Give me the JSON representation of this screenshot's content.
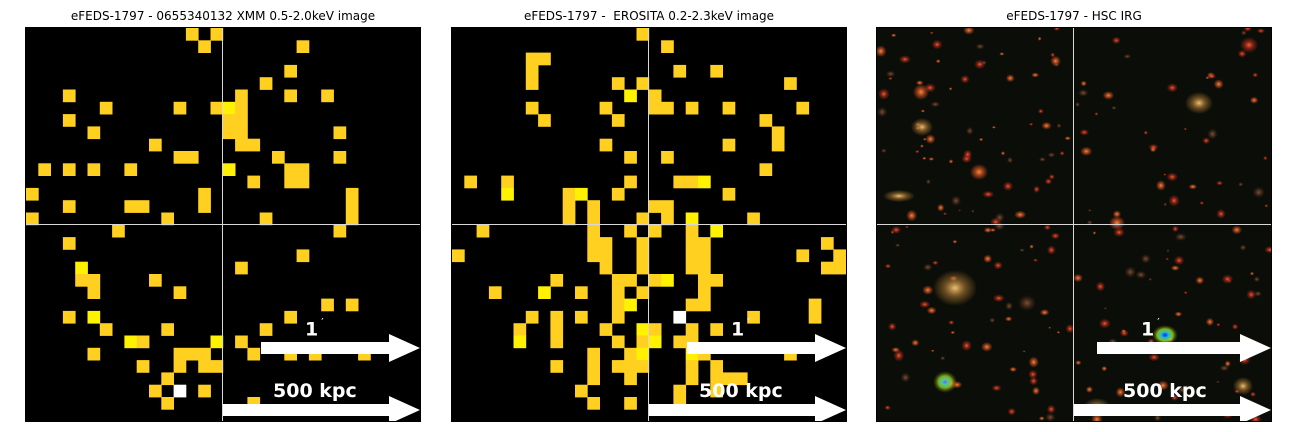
{
  "panels": [
    {
      "title": "eFEDS-1797 - 0655340132 XMM 0.5-2.0keV image",
      "angular_scale_label": "1",
      "angular_scale_unit": "′",
      "physical_scale_label": "500 kpc",
      "kind": "xray-pixel-map"
    },
    {
      "title": "eFEDS-1797 -  EROSITA 0.2-2.3keV image",
      "angular_scale_label": "1",
      "angular_scale_unit": "′",
      "physical_scale_label": "500 kpc",
      "kind": "xray-pixel-map"
    },
    {
      "title": "eFEDS-1797 - HSC IRG",
      "angular_scale_label": "1",
      "angular_scale_unit": "′",
      "physical_scale_label": "500 kpc",
      "kind": "optical-color-composite"
    }
  ],
  "colors": {
    "background": "#000000",
    "count_low": "#ffc140",
    "count_mid": "#ffd020",
    "count_high": "#fff200",
    "count_peak": "#ffffff",
    "crosshair": "#d8d8d8",
    "arrow": "#ffffff"
  }
}
